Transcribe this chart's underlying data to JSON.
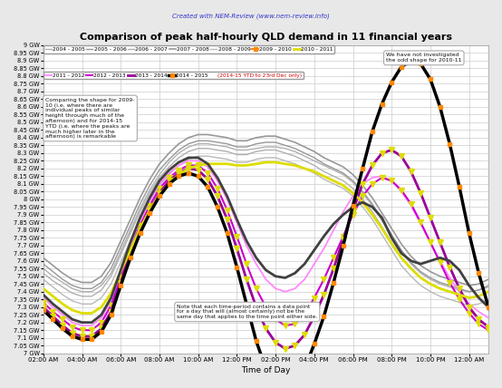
{
  "title": "Comparison of peak half-hourly QLD demand in 11 financial years",
  "subtitle": "Created with NEM-Review (www.nem-review.info)",
  "xlabel": "Time of Day",
  "background_color": "#e8e8e8",
  "plot_bg_color": "#ffffff",
  "ylim": [
    7.0,
    9.0
  ],
  "annotation1": "Comparing the shape for 2009-\n10 (i.e. where there are\nindividual peaks of similar\nheight through much of the\nafternoon) and for 2014-15\nYTD (i.e. where the peaks are\nmuch higher later in the\nafternoon) is remarkable",
  "annotation2": "We have not investigated\nthe odd shape for 2010-11",
  "annotation3": "Note that each time-period contains a data point\nfor a day that will (almost certainly) not be the\nsame day that applies to the time point either side.",
  "times_hours": [
    2,
    2.5,
    3,
    3.5,
    4,
    4.5,
    5,
    5.5,
    6,
    6.5,
    7,
    7.5,
    8,
    8.5,
    9,
    9.5,
    10,
    10.5,
    11,
    11.5,
    12,
    12.5,
    13,
    13.5,
    14,
    14.5,
    15,
    15.5,
    16,
    16.5,
    17,
    17.5,
    18,
    18.5,
    19,
    19.5,
    20,
    20.5,
    21,
    21.5,
    22,
    22.5,
    23,
    23.5,
    0,
    0.5,
    1,
    1.5
  ],
  "series_styles": {
    "2004-2005": {
      "color": "#b0b0b0",
      "lw": 1.0,
      "zorder": 2,
      "marker": null,
      "marker_color": null
    },
    "2005-2006": {
      "color": "#989898",
      "lw": 1.0,
      "zorder": 2,
      "marker": null,
      "marker_color": null
    },
    "2006-2007": {
      "color": "#b0b0b0",
      "lw": 1.0,
      "zorder": 2,
      "marker": null,
      "marker_color": null
    },
    "2007-2008": {
      "color": "#989898",
      "lw": 1.2,
      "zorder": 2,
      "marker": null,
      "marker_color": null
    },
    "2008-2009": {
      "color": "#b8b8b8",
      "lw": 1.0,
      "zorder": 2,
      "marker": null,
      "marker_color": null
    },
    "2009-2010": {
      "color": "#dddd00",
      "lw": 2.0,
      "zorder": 5,
      "marker": null,
      "marker_color": null
    },
    "2010-2011": {
      "color": "#404040",
      "lw": 2.0,
      "zorder": 6,
      "marker": null,
      "marker_color": null
    },
    "2011-2012": {
      "color": "#ff88ff",
      "lw": 1.3,
      "zorder": 3,
      "marker": null,
      "marker_color": null
    },
    "2012-2013": {
      "color": "#cc00cc",
      "lw": 1.5,
      "zorder": 3,
      "marker": "v",
      "marker_color": "#dddd00"
    },
    "2013-2014": {
      "color": "#990099",
      "lw": 2.0,
      "zorder": 4,
      "marker": "v",
      "marker_color": "#dddd00"
    },
    "2014-2015": {
      "color": "#000000",
      "lw": 2.5,
      "zorder": 7,
      "marker": "s",
      "marker_color": "#ff8800"
    }
  },
  "data": {
    "2004-2005": [
      7.55,
      7.5,
      7.46,
      7.42,
      7.4,
      7.4,
      7.44,
      7.52,
      7.66,
      7.8,
      7.94,
      8.06,
      8.16,
      8.24,
      8.3,
      8.34,
      8.36,
      8.36,
      8.35,
      8.34,
      8.32,
      8.32,
      8.33,
      8.34,
      8.34,
      8.33,
      8.31,
      8.28,
      8.25,
      8.22,
      8.19,
      8.16,
      8.11,
      8.04,
      7.96,
      7.86,
      7.76,
      7.66,
      7.58,
      7.52,
      7.48,
      7.45,
      7.43,
      7.41,
      7.4,
      7.41,
      7.43,
      7.48
    ],
    "2005-2006": [
      7.58,
      7.53,
      7.48,
      7.44,
      7.42,
      7.42,
      7.46,
      7.55,
      7.69,
      7.83,
      7.97,
      8.09,
      8.19,
      8.26,
      8.32,
      8.36,
      8.38,
      8.38,
      8.37,
      8.36,
      8.34,
      8.34,
      8.36,
      8.37,
      8.37,
      8.35,
      8.33,
      8.3,
      8.27,
      8.23,
      8.2,
      8.17,
      8.12,
      8.05,
      7.97,
      7.87,
      7.77,
      7.67,
      7.59,
      7.53,
      7.49,
      7.46,
      7.44,
      7.42,
      7.4,
      7.41,
      7.44,
      7.49
    ],
    "2006-2007": [
      7.52,
      7.47,
      7.43,
      7.39,
      7.37,
      7.37,
      7.41,
      7.5,
      7.64,
      7.78,
      7.92,
      8.04,
      8.14,
      8.21,
      8.27,
      8.31,
      8.33,
      8.33,
      8.32,
      8.31,
      8.29,
      8.29,
      8.31,
      8.32,
      8.32,
      8.3,
      8.28,
      8.25,
      8.22,
      8.18,
      8.15,
      8.12,
      8.07,
      8.0,
      7.92,
      7.82,
      7.72,
      7.62,
      7.55,
      7.49,
      7.45,
      7.42,
      7.4,
      7.38,
      7.36,
      7.37,
      7.4,
      7.45
    ],
    "2007-2008": [
      7.62,
      7.57,
      7.52,
      7.48,
      7.46,
      7.46,
      7.5,
      7.59,
      7.73,
      7.87,
      8.01,
      8.13,
      8.23,
      8.3,
      8.36,
      8.4,
      8.42,
      8.42,
      8.41,
      8.4,
      8.38,
      8.38,
      8.4,
      8.41,
      8.41,
      8.39,
      8.37,
      8.34,
      8.31,
      8.27,
      8.24,
      8.21,
      8.16,
      8.09,
      8.01,
      7.91,
      7.81,
      7.71,
      7.63,
      7.57,
      7.53,
      7.5,
      7.48,
      7.46,
      7.44,
      7.45,
      7.48,
      7.53
    ],
    "2008-2009": [
      7.48,
      7.43,
      7.38,
      7.34,
      7.32,
      7.32,
      7.36,
      7.45,
      7.59,
      7.73,
      7.87,
      7.99,
      8.09,
      8.16,
      8.22,
      8.26,
      8.28,
      8.28,
      8.27,
      8.26,
      8.24,
      8.24,
      8.26,
      8.27,
      8.27,
      8.25,
      8.23,
      8.2,
      8.17,
      8.13,
      8.1,
      8.07,
      8.02,
      7.95,
      7.87,
      7.77,
      7.67,
      7.57,
      7.5,
      7.44,
      7.4,
      7.37,
      7.35,
      7.33,
      7.31,
      7.32,
      7.35,
      7.4
    ],
    "2009-2010": [
      7.42,
      7.37,
      7.32,
      7.28,
      7.26,
      7.26,
      7.3,
      7.39,
      7.53,
      7.67,
      7.81,
      7.93,
      8.03,
      8.1,
      8.16,
      8.2,
      8.22,
      8.23,
      8.23,
      8.23,
      8.22,
      8.22,
      8.23,
      8.24,
      8.24,
      8.23,
      8.22,
      8.2,
      8.18,
      8.15,
      8.12,
      8.09,
      8.04,
      7.98,
      7.9,
      7.81,
      7.71,
      7.62,
      7.55,
      7.49,
      7.45,
      7.42,
      7.4,
      7.38,
      7.36,
      7.37,
      7.4,
      7.45
    ],
    "2010-2011": [
      7.38,
      7.32,
      7.27,
      7.22,
      7.2,
      7.2,
      7.25,
      7.36,
      7.54,
      7.72,
      7.88,
      8.01,
      8.12,
      8.19,
      8.24,
      8.27,
      8.27,
      8.23,
      8.14,
      8.02,
      7.87,
      7.73,
      7.62,
      7.54,
      7.5,
      7.49,
      7.52,
      7.58,
      7.67,
      7.76,
      7.84,
      7.9,
      7.95,
      7.98,
      7.95,
      7.88,
      7.75,
      7.65,
      7.6,
      7.58,
      7.6,
      7.62,
      7.6,
      7.54,
      7.44,
      7.36,
      7.3,
      7.26
    ],
    "2011-2012": [
      7.36,
      7.3,
      7.25,
      7.2,
      7.18,
      7.18,
      7.23,
      7.34,
      7.52,
      7.7,
      7.86,
      7.99,
      8.1,
      8.17,
      8.22,
      8.25,
      8.25,
      8.21,
      8.12,
      8.0,
      7.85,
      7.7,
      7.58,
      7.48,
      7.42,
      7.4,
      7.42,
      7.48,
      7.58,
      7.68,
      7.8,
      7.92,
      8.02,
      8.1,
      8.14,
      8.15,
      8.12,
      8.05,
      7.96,
      7.84,
      7.72,
      7.6,
      7.49,
      7.4,
      7.32,
      7.27,
      7.23,
      7.2
    ],
    "2012-2013": [
      7.33,
      7.27,
      7.22,
      7.17,
      7.15,
      7.15,
      7.2,
      7.31,
      7.49,
      7.67,
      7.83,
      7.96,
      8.07,
      8.14,
      8.19,
      8.22,
      8.22,
      8.17,
      8.07,
      7.93,
      7.76,
      7.58,
      7.42,
      7.3,
      7.22,
      7.18,
      7.19,
      7.25,
      7.36,
      7.48,
      7.62,
      7.76,
      7.9,
      8.02,
      8.1,
      8.14,
      8.12,
      8.06,
      7.97,
      7.85,
      7.72,
      7.59,
      7.46,
      7.35,
      7.26,
      7.19,
      7.15,
      7.13
    ],
    "2013-2014": [
      7.3,
      7.24,
      7.18,
      7.13,
      7.11,
      7.11,
      7.16,
      7.27,
      7.46,
      7.64,
      7.8,
      7.93,
      8.04,
      8.12,
      8.17,
      8.2,
      8.19,
      8.13,
      8.02,
      7.87,
      7.68,
      7.48,
      7.3,
      7.16,
      7.07,
      7.03,
      7.05,
      7.12,
      7.24,
      7.38,
      7.55,
      7.74,
      7.93,
      8.1,
      8.22,
      8.3,
      8.32,
      8.28,
      8.18,
      8.04,
      7.88,
      7.72,
      7.56,
      7.42,
      7.3,
      7.22,
      7.17,
      7.14
    ],
    "2014-2015": [
      7.28,
      7.22,
      7.16,
      7.11,
      7.09,
      7.09,
      7.14,
      7.25,
      7.44,
      7.62,
      7.78,
      7.91,
      8.02,
      8.1,
      8.15,
      8.17,
      8.15,
      8.08,
      7.95,
      7.78,
      7.56,
      7.32,
      7.08,
      6.9,
      6.78,
      6.74,
      6.78,
      6.9,
      7.06,
      7.24,
      7.46,
      7.7,
      7.96,
      8.2,
      8.44,
      8.62,
      8.76,
      8.86,
      8.9,
      8.88,
      8.78,
      8.6,
      8.36,
      8.08,
      7.78,
      7.52,
      7.3,
      7.14
    ]
  },
  "legend_row1": [
    {
      "label": "2004 - 2005",
      "color": "#b0b0b0",
      "lw": 1.0,
      "marker": null
    },
    {
      "label": "2005 - 2006",
      "color": "#989898",
      "lw": 1.0,
      "marker": null
    },
    {
      "label": "2006 - 2007",
      "color": "#b0b0b0",
      "lw": 1.0,
      "marker": null
    },
    {
      "label": "2007 - 2008",
      "color": "#989898",
      "lw": 1.2,
      "marker": null
    },
    {
      "label": "2008 - 2009",
      "color": "#b8b8b8",
      "lw": 1.0,
      "marker": null
    },
    {
      "label": "2009 - 2010",
      "color": "#ff8800",
      "lw": 1.5,
      "marker": "s"
    },
    {
      "label": "2010 - 2011",
      "color": "#dddd00",
      "lw": 2.0,
      "marker": null
    }
  ],
  "legend_row2": [
    {
      "label": "2011 - 2012",
      "color": "#ff88ff",
      "lw": 1.3,
      "marker": null
    },
    {
      "label": "2012 - 2013",
      "color": "#cc00cc",
      "lw": 1.5,
      "marker": null
    },
    {
      "label": "2013 - 2014",
      "color": "#990099",
      "lw": 2.0,
      "marker": null
    },
    {
      "label": "2014 - 2015",
      "color": "#000000",
      "lw": 2.5,
      "marker": "s",
      "marker_color": "#ff8800"
    },
    {
      "label": "(2014-15 YTD to 23rd Dec only)",
      "color": "#cc0000",
      "lw": 0,
      "marker": null
    }
  ]
}
